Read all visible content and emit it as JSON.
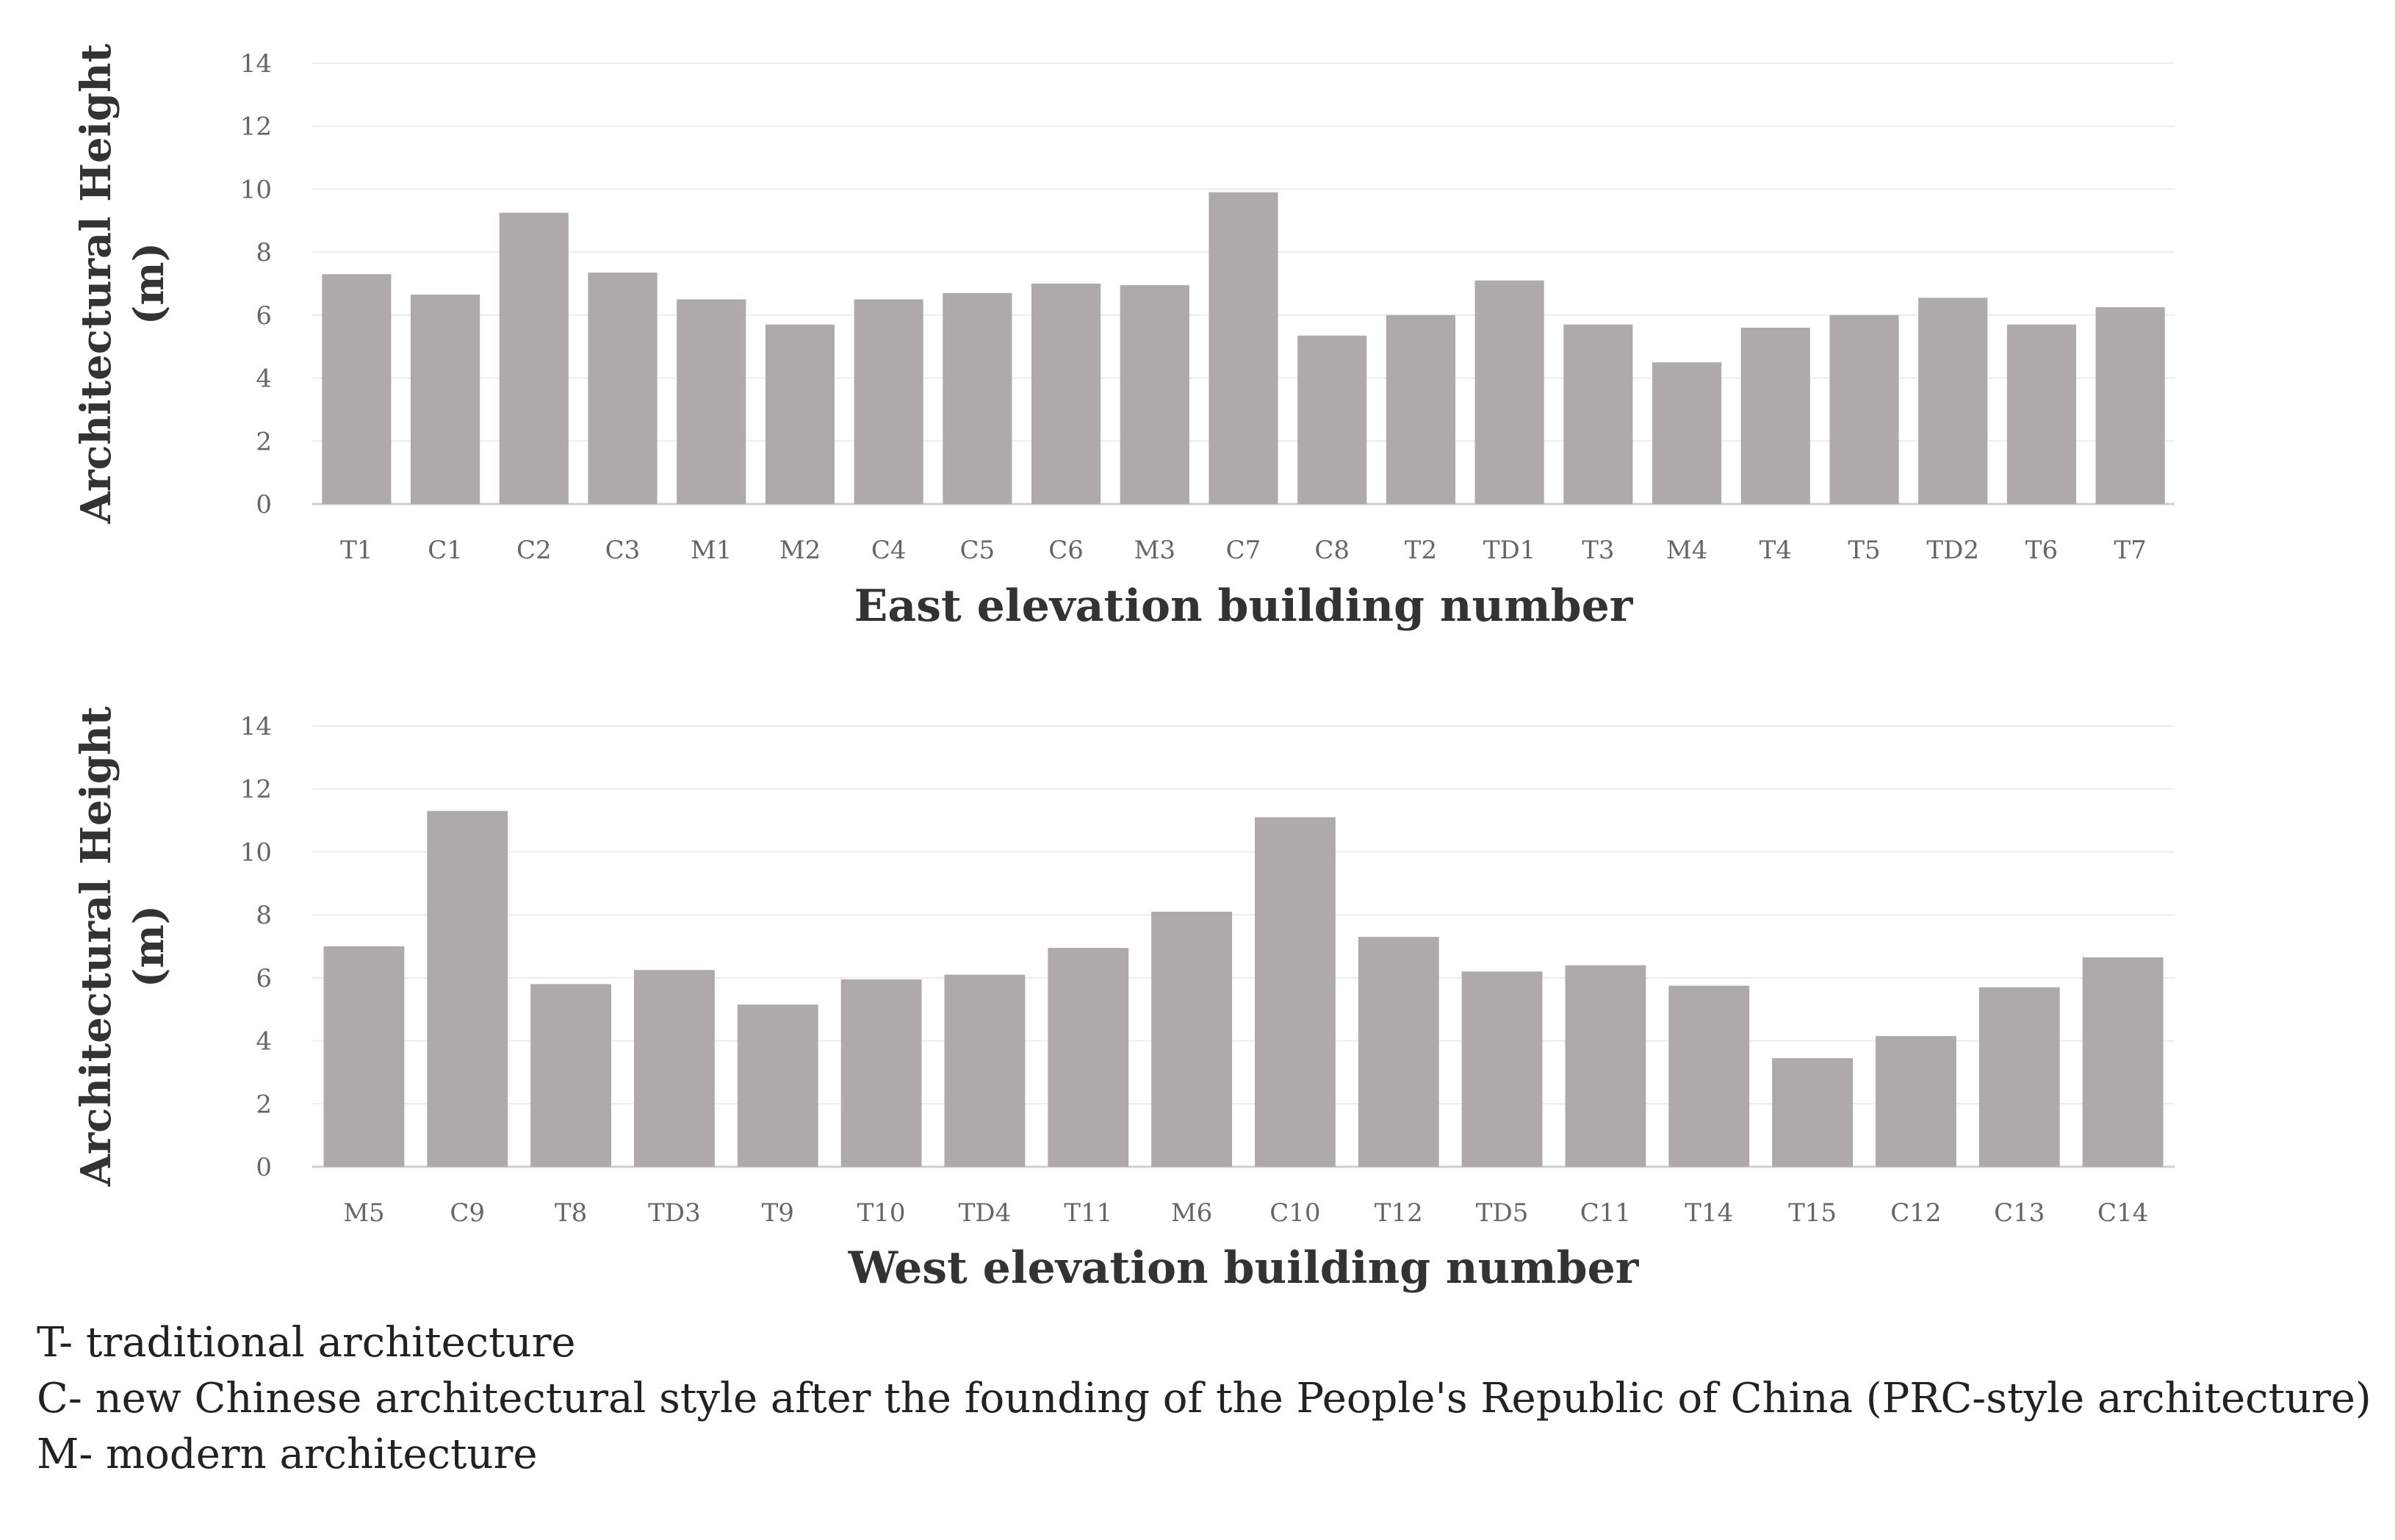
{
  "chart_data": [
    {
      "type": "bar",
      "xlabel": "East elevation building number",
      "ylabel": [
        "Architectural Height",
        "(m)"
      ],
      "ylim": [
        0,
        14
      ],
      "yticks": [
        0,
        2,
        4,
        6,
        8,
        10,
        12,
        14
      ],
      "grid": true,
      "bar_color": "#aeaaaa",
      "categories": [
        "T1",
        "C1",
        "C2",
        "C3",
        "M1",
        "M2",
        "C4",
        "C5",
        "C6",
        "M3",
        "C7",
        "C8",
        "T2",
        "TD1",
        "T3",
        "M4",
        "T4",
        "T5",
        "TD2",
        "T6",
        "T7"
      ],
      "values": [
        7.3,
        6.65,
        9.25,
        7.35,
        6.5,
        5.7,
        6.5,
        6.7,
        7.0,
        6.95,
        9.9,
        5.35,
        6.0,
        7.1,
        5.7,
        4.5,
        5.6,
        6.0,
        6.55,
        5.7,
        6.25
      ]
    },
    {
      "type": "bar",
      "xlabel": "West elevation building number",
      "ylabel": [
        "Architectural Height",
        "(m)"
      ],
      "ylim": [
        0,
        14
      ],
      "yticks": [
        0,
        2,
        4,
        6,
        8,
        10,
        12,
        14
      ],
      "grid": true,
      "bar_color": "#aeaaaa",
      "categories": [
        "M5",
        "C9",
        "T8",
        "TD3",
        "T9",
        "T10",
        "TD4",
        "T11",
        "M6",
        "C10",
        "T12",
        "TD5",
        "C11",
        "T14",
        "T15",
        "C12",
        "C13",
        "C14"
      ],
      "values": [
        7.0,
        11.3,
        5.8,
        6.25,
        5.15,
        5.95,
        6.1,
        6.95,
        8.1,
        11.1,
        7.3,
        6.2,
        6.4,
        5.75,
        3.45,
        4.15,
        5.7,
        6.65
      ]
    }
  ],
  "legend_notes": [
    "T- traditional architecture",
    "C- new Chinese architectural style after the founding of the People's Republic of China (PRC-style architecture)",
    "M- modern architecture"
  ]
}
